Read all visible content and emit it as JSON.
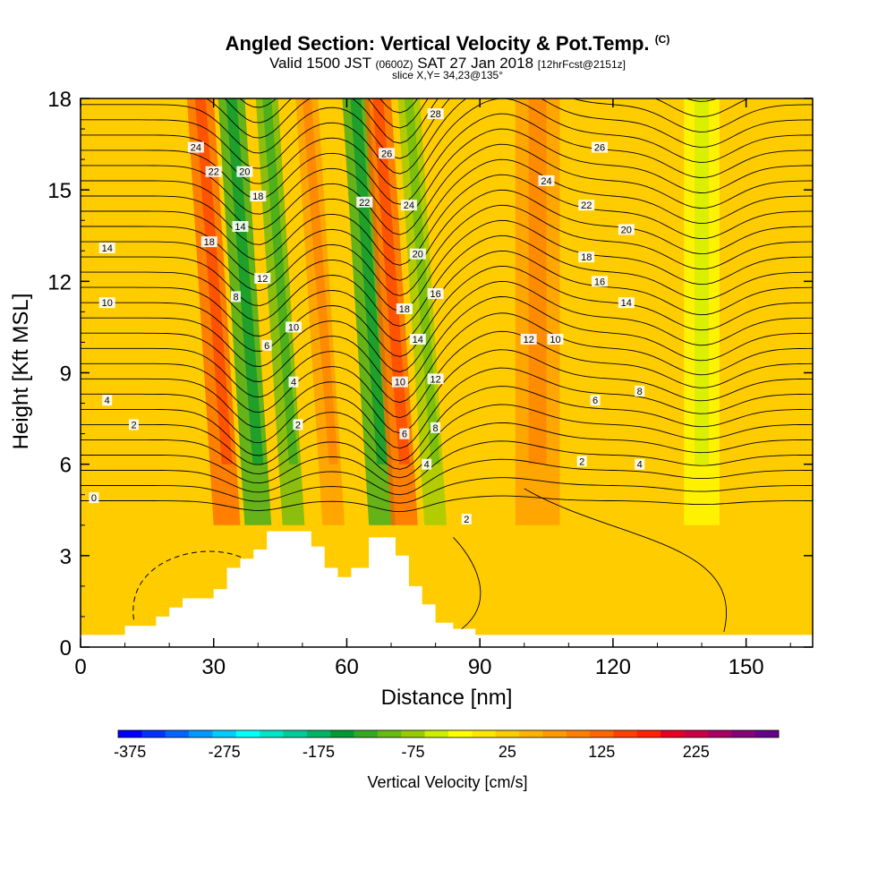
{
  "header": {
    "title": "Angled Section: Vertical Velocity & Pot.Temp.",
    "title_copyright": "(C)",
    "subtitle_valid": "Valid 1500 JST",
    "subtitle_utc": "(0600Z)",
    "subtitle_date": "SAT 27 Jan 2018",
    "subtitle_fcst": "[12hrFcst@2151z]",
    "slice": "slice X,Y= 34,23@135°"
  },
  "chart_data": {
    "type": "contour-cross-section",
    "xlabel": "Distance [nm]",
    "ylabel": "Height [Kft MSL]",
    "xlim": [
      0,
      165
    ],
    "ylim": [
      0,
      18
    ],
    "x_ticks": [
      0,
      30,
      60,
      90,
      120,
      150
    ],
    "y_ticks": [
      0,
      3,
      6,
      9,
      12,
      15,
      18
    ],
    "fill_variable": "Vertical Velocity [cm/s]",
    "contour_variable": "Potential Temperature",
    "velocity_bands": [
      {
        "x_center": 33,
        "width": 6,
        "value": 125
      },
      {
        "x_center": 40,
        "width": 6,
        "value": -125
      },
      {
        "x_center": 48,
        "width": 5,
        "value": -100
      },
      {
        "x_center": 57,
        "width": 5,
        "value": 75
      },
      {
        "x_center": 68,
        "width": 6,
        "value": -125
      },
      {
        "x_center": 73,
        "width": 6,
        "value": 125
      },
      {
        "x_center": 80,
        "width": 5,
        "value": -75
      },
      {
        "x_center": 103,
        "width": 10,
        "value": 75
      },
      {
        "x_center": 140,
        "width": 8,
        "value": -25
      }
    ],
    "terrain": [
      [
        0,
        0.4
      ],
      [
        10,
        0.4
      ],
      [
        10,
        0.7
      ],
      [
        17,
        0.7
      ],
      [
        17,
        1.0
      ],
      [
        20,
        1.0
      ],
      [
        20,
        1.3
      ],
      [
        23,
        1.3
      ],
      [
        23,
        1.6
      ],
      [
        30,
        1.6
      ],
      [
        30,
        1.9
      ],
      [
        33,
        1.9
      ],
      [
        33,
        2.6
      ],
      [
        36,
        2.6
      ],
      [
        36,
        2.9
      ],
      [
        39,
        2.9
      ],
      [
        39,
        3.2
      ],
      [
        42,
        3.2
      ],
      [
        42,
        3.8
      ],
      [
        52,
        3.8
      ],
      [
        52,
        3.3
      ],
      [
        55,
        3.3
      ],
      [
        55,
        2.6
      ],
      [
        58,
        2.6
      ],
      [
        58,
        2.3
      ],
      [
        61,
        2.3
      ],
      [
        61,
        2.6
      ],
      [
        65,
        2.6
      ],
      [
        65,
        3.6
      ],
      [
        71,
        3.6
      ],
      [
        71,
        3.0
      ],
      [
        74,
        3.0
      ],
      [
        74,
        2.0
      ],
      [
        77,
        2.0
      ],
      [
        77,
        1.4
      ],
      [
        80,
        1.4
      ],
      [
        80,
        0.8
      ],
      [
        84,
        0.8
      ],
      [
        84,
        0.6
      ],
      [
        89,
        0.6
      ],
      [
        89,
        0.4
      ],
      [
        165,
        0.4
      ]
    ],
    "contour_labels": [
      {
        "text": "24",
        "x": 26,
        "y": 16.4
      },
      {
        "text": "22",
        "x": 30,
        "y": 15.6
      },
      {
        "text": "20",
        "x": 37,
        "y": 15.6
      },
      {
        "text": "18",
        "x": 40,
        "y": 14.8
      },
      {
        "text": "14",
        "x": 36,
        "y": 13.8
      },
      {
        "text": "18",
        "x": 29,
        "y": 13.3
      },
      {
        "text": "14",
        "x": 6,
        "y": 13.1
      },
      {
        "text": "12",
        "x": 41,
        "y": 12.1
      },
      {
        "text": "10",
        "x": 6,
        "y": 11.3
      },
      {
        "text": "8",
        "x": 35,
        "y": 11.5
      },
      {
        "text": "10",
        "x": 48,
        "y": 10.5
      },
      {
        "text": "6",
        "x": 42,
        "y": 9.9
      },
      {
        "text": "4",
        "x": 48,
        "y": 8.7
      },
      {
        "text": "4",
        "x": 6,
        "y": 8.1
      },
      {
        "text": "2",
        "x": 12,
        "y": 7.3
      },
      {
        "text": "2",
        "x": 49,
        "y": 7.3
      },
      {
        "text": "0",
        "x": 3,
        "y": 4.9
      },
      {
        "text": "28",
        "x": 80,
        "y": 17.5
      },
      {
        "text": "26",
        "x": 69,
        "y": 16.2
      },
      {
        "text": "22",
        "x": 64,
        "y": 14.6
      },
      {
        "text": "24",
        "x": 74,
        "y": 14.5
      },
      {
        "text": "20",
        "x": 76,
        "y": 12.9
      },
      {
        "text": "18",
        "x": 73,
        "y": 11.1
      },
      {
        "text": "16",
        "x": 80,
        "y": 11.6
      },
      {
        "text": "14",
        "x": 76,
        "y": 10.1
      },
      {
        "text": "12",
        "x": 80,
        "y": 8.8
      },
      {
        "text": "10",
        "x": 72,
        "y": 8.7
      },
      {
        "text": "8",
        "x": 80,
        "y": 7.2
      },
      {
        "text": "6",
        "x": 73,
        "y": 7.0
      },
      {
        "text": "4",
        "x": 78,
        "y": 6.0
      },
      {
        "text": "2",
        "x": 87,
        "y": 4.2
      },
      {
        "text": "26",
        "x": 117,
        "y": 16.4
      },
      {
        "text": "24",
        "x": 105,
        "y": 15.3
      },
      {
        "text": "22",
        "x": 114,
        "y": 14.5
      },
      {
        "text": "20",
        "x": 123,
        "y": 13.7
      },
      {
        "text": "18",
        "x": 114,
        "y": 12.8
      },
      {
        "text": "16",
        "x": 117,
        "y": 12.0
      },
      {
        "text": "14",
        "x": 123,
        "y": 11.3
      },
      {
        "text": "12",
        "x": 101,
        "y": 10.1
      },
      {
        "text": "10",
        "x": 107,
        "y": 10.1
      },
      {
        "text": "8",
        "x": 126,
        "y": 8.4
      },
      {
        "text": "6",
        "x": 116,
        "y": 8.1
      },
      {
        "text": "2",
        "x": 113,
        "y": 6.1
      },
      {
        "text": "4",
        "x": 126,
        "y": 6.0
      }
    ],
    "colorbar": {
      "label": "Vertical Velocity [cm/s]",
      "tick_labels": [
        "-375",
        "-275",
        "-175",
        "-75",
        "25",
        "125",
        "225"
      ],
      "colors": [
        "#0000ff",
        "#0033ff",
        "#0066ff",
        "#0099ff",
        "#00ccff",
        "#00ffff",
        "#00e5c8",
        "#00cc99",
        "#00b466",
        "#009933",
        "#33aa22",
        "#66bb11",
        "#99cc00",
        "#ccee00",
        "#ffff00",
        "#ffe600",
        "#ffcc00",
        "#ffb300",
        "#ff9900",
        "#ff8000",
        "#ff6600",
        "#ff4000",
        "#ff2200",
        "#e60022",
        "#cc0044",
        "#aa0066",
        "#880077",
        "#660088"
      ]
    }
  }
}
